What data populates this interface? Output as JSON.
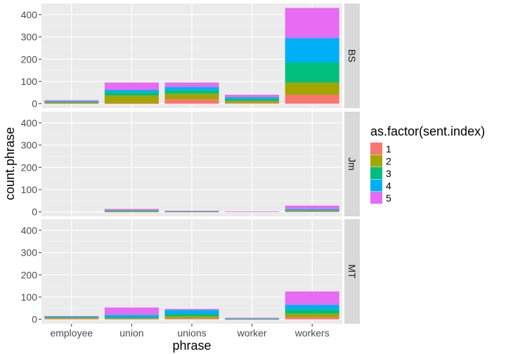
{
  "chart_data": {
    "type": "bar",
    "stacked": true,
    "facet_rows": [
      "BS",
      "Jm",
      "MT"
    ],
    "categories": [
      "employee",
      "union",
      "unions",
      "worker",
      "workers"
    ],
    "xlabel": "phrase",
    "ylabel": "count.phrase",
    "ylim": [
      0,
      440
    ],
    "yticks": [
      0,
      100,
      200,
      300,
      400
    ],
    "grid": true,
    "legend": {
      "title": "as.factor(sent.index)",
      "position": "right",
      "entries": [
        "1",
        "2",
        "3",
        "4",
        "5"
      ]
    },
    "series_colors": [
      "#F8766D",
      "#A3A500",
      "#00BF7D",
      "#00B0F6",
      "#E76BF3"
    ],
    "facets": [
      {
        "name": "BS",
        "series": [
          {
            "name": "1",
            "values": [
              2,
              2,
              20,
              3,
              40
            ]
          },
          {
            "name": "2",
            "values": [
              3,
              35,
              25,
              10,
              55
            ]
          },
          {
            "name": "3",
            "values": [
              4,
              15,
              15,
              8,
              90
            ]
          },
          {
            "name": "4",
            "values": [
              3,
              10,
              15,
              8,
              110
            ]
          },
          {
            "name": "5",
            "values": [
              4,
              33,
              20,
              11,
              135
            ]
          }
        ]
      },
      {
        "name": "Jm",
        "series": [
          {
            "name": "1",
            "values": [
              0,
              1,
              1,
              0,
              2
            ]
          },
          {
            "name": "2",
            "values": [
              0,
              2,
              1,
              0,
              2
            ]
          },
          {
            "name": "3",
            "values": [
              0,
              3,
              1,
              0,
              4
            ]
          },
          {
            "name": "4",
            "values": [
              0,
              2,
              1,
              0,
              4
            ]
          },
          {
            "name": "5",
            "values": [
              0,
              5,
              1,
              2,
              16
            ]
          }
        ]
      },
      {
        "name": "MT",
        "series": [
          {
            "name": "1",
            "values": [
              3,
              2,
              4,
              1,
              10
            ]
          },
          {
            "name": "2",
            "values": [
              4,
              3,
              10,
              1,
              15
            ]
          },
          {
            "name": "3",
            "values": [
              3,
              5,
              10,
              1,
              20
            ]
          },
          {
            "name": "4",
            "values": [
              3,
              10,
              18,
              1,
              20
            ]
          },
          {
            "name": "5",
            "values": [
              2,
              33,
              5,
              3,
              60
            ]
          }
        ]
      }
    ]
  }
}
